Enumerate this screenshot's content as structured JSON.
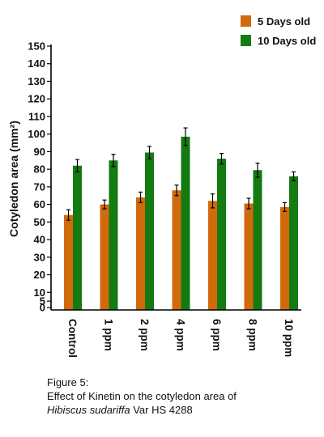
{
  "chart_data": {
    "type": "bar",
    "ylabel": "Cotyledon area  (mm²)",
    "ylim": [
      0,
      150
    ],
    "yticks": [
      0,
      5,
      10,
      20,
      30,
      40,
      50,
      60,
      70,
      80,
      90,
      100,
      110,
      120,
      130,
      140,
      150
    ],
    "categories": [
      "Control",
      "1 ppm",
      "2 ppm",
      "4 ppm",
      "6 ppm",
      "8 ppm",
      "10 ppm"
    ],
    "series": [
      {
        "name": "5 Days old",
        "color": "#d06a0c",
        "values": [
          54,
          60,
          64,
          68,
          62,
          60.5,
          58.5
        ],
        "errors": [
          3,
          2.5,
          3,
          3,
          4,
          3,
          2.5
        ]
      },
      {
        "name": "10 Days old",
        "color": "#147a12",
        "values": [
          82,
          85,
          89.5,
          98.5,
          86,
          79.5,
          76
        ],
        "errors": [
          3.5,
          3.5,
          3.5,
          5,
          3,
          4,
          2.5
        ]
      }
    ],
    "legend_position": "top-right",
    "grid": false
  },
  "caption": {
    "line1": "Figure  5:",
    "line2": "Effect of Kinetin on the cotyledon area of",
    "line3_species": "Hibiscus sudariffa",
    "line3_rest": " Var HS 4288"
  }
}
